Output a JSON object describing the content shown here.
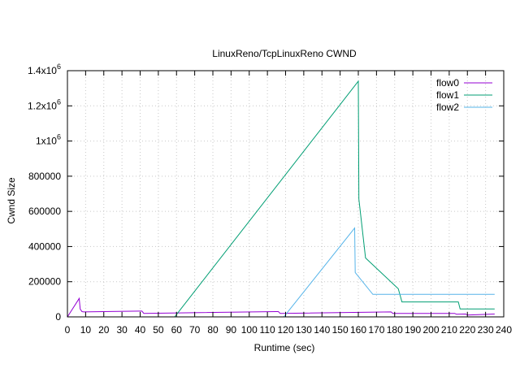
{
  "chart_data": {
    "type": "line",
    "title": "LinuxReno/TcpLinuxReno CWND",
    "xlabel": "Runtime (sec)",
    "ylabel": "Cwnd Size",
    "xlim": [
      0,
      240
    ],
    "ylim": [
      0,
      1400000
    ],
    "x_ticks": [
      {
        "v": 0,
        "label": "0"
      },
      {
        "v": 10,
        "label": "10"
      },
      {
        "v": 20,
        "label": "20"
      },
      {
        "v": 30,
        "label": "30"
      },
      {
        "v": 40,
        "label": "40"
      },
      {
        "v": 50,
        "label": "50"
      },
      {
        "v": 60,
        "label": "60"
      },
      {
        "v": 70,
        "label": "70"
      },
      {
        "v": 80,
        "label": "80"
      },
      {
        "v": 90,
        "label": "90"
      },
      {
        "v": 100,
        "label": "100"
      },
      {
        "v": 110,
        "label": "110"
      },
      {
        "v": 120,
        "label": "120"
      },
      {
        "v": 130,
        "label": "130"
      },
      {
        "v": 140,
        "label": "140"
      },
      {
        "v": 150,
        "label": "150"
      },
      {
        "v": 160,
        "label": "160"
      },
      {
        "v": 170,
        "label": "170"
      },
      {
        "v": 180,
        "label": "180"
      },
      {
        "v": 190,
        "label": "190"
      },
      {
        "v": 200,
        "label": "200"
      },
      {
        "v": 210,
        "label": "210"
      },
      {
        "v": 220,
        "label": "220"
      },
      {
        "v": 230,
        "label": "230"
      },
      {
        "v": 240,
        "label": "240"
      }
    ],
    "y_ticks": [
      {
        "v": 0,
        "label": "0"
      },
      {
        "v": 200000,
        "label": "200000"
      },
      {
        "v": 400000,
        "label": "400000"
      },
      {
        "v": 600000,
        "label": "600000"
      },
      {
        "v": 800000,
        "label": "800000"
      },
      {
        "v": 1000000,
        "mantissa": "1x10",
        "exp": "6"
      },
      {
        "v": 1200000,
        "mantissa": "1.2x10",
        "exp": "6"
      },
      {
        "v": 1400000,
        "mantissa": "1.4x10",
        "exp": "6"
      }
    ],
    "grid": true,
    "legend_position": "top-right",
    "series": [
      {
        "name": "flow0",
        "color": "#9400d3",
        "points": [
          [
            0,
            0
          ],
          [
            6.5,
            105000
          ],
          [
            7,
            45000
          ],
          [
            8,
            30000
          ],
          [
            9,
            28000
          ],
          [
            40,
            33000
          ],
          [
            41,
            33000
          ],
          [
            42,
            20000
          ],
          [
            115,
            30000
          ],
          [
            116,
            30000
          ],
          [
            117,
            20000
          ],
          [
            178,
            28000
          ],
          [
            179,
            20000
          ],
          [
            213,
            20000
          ],
          [
            214,
            15000
          ],
          [
            219,
            16000
          ],
          [
            220,
            10000
          ],
          [
            235,
            16000
          ]
        ]
      },
      {
        "name": "flow1",
        "color": "#009e73",
        "points": [
          [
            59,
            0
          ],
          [
            160,
            1340000
          ],
          [
            160.3,
            670000
          ],
          [
            164,
            335000
          ],
          [
            182,
            160000
          ],
          [
            184,
            85000
          ],
          [
            215,
            85000
          ],
          [
            216,
            45000
          ],
          [
            235,
            45000
          ]
        ]
      },
      {
        "name": "flow2",
        "color": "#56b4e9",
        "points": [
          [
            119,
            0
          ],
          [
            158,
            505000
          ],
          [
            158.3,
            252000
          ],
          [
            168,
            128000
          ],
          [
            235,
            128000
          ]
        ]
      }
    ]
  }
}
